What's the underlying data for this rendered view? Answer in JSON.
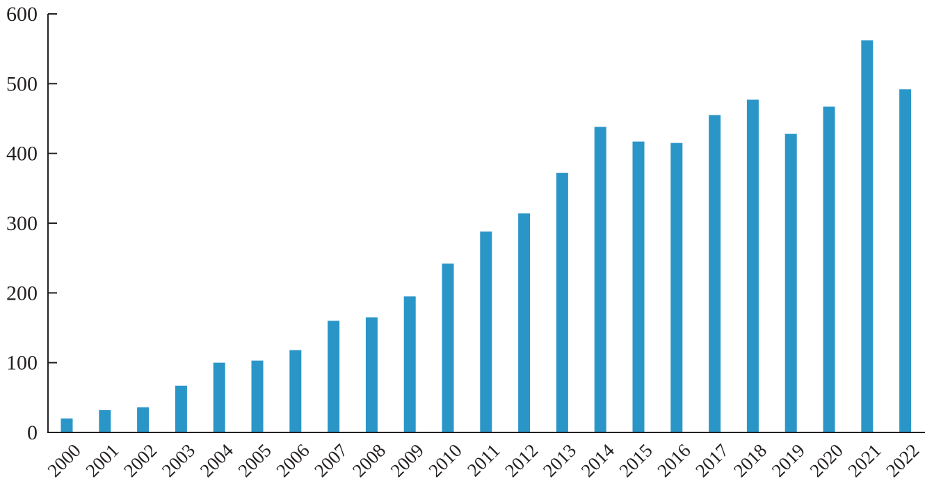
{
  "chart_data": {
    "type": "bar",
    "title": "",
    "xlabel": "",
    "ylabel": "",
    "ylim": [
      0,
      600
    ],
    "yticks": [
      0,
      100,
      200,
      300,
      400,
      500,
      600
    ],
    "grid": false,
    "bar_color": "#2a96c8",
    "categories": [
      "2000",
      "2001",
      "2002",
      "2003",
      "2004",
      "2005",
      "2006",
      "2007",
      "2008",
      "2009",
      "2010",
      "2011",
      "2012",
      "2013",
      "2014",
      "2015",
      "2016",
      "2017",
      "2018",
      "2019",
      "2020",
      "2021",
      "2022"
    ],
    "values": [
      20,
      32,
      36,
      67,
      100,
      103,
      118,
      160,
      165,
      195,
      242,
      288,
      314,
      372,
      438,
      417,
      415,
      455,
      477,
      428,
      467,
      562,
      492
    ]
  }
}
